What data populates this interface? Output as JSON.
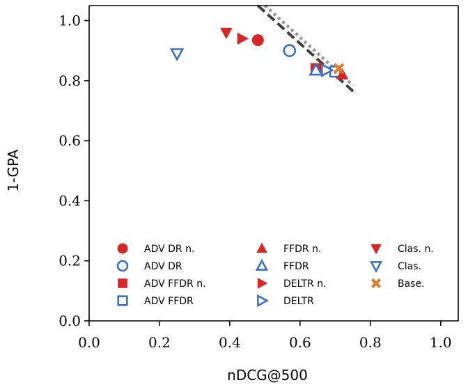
{
  "chart_data": {
    "type": "scatter",
    "xlabel": "nDCG@500",
    "ylabel": "1-GPA",
    "xlim": [
      0.0,
      1.05
    ],
    "ylim": [
      0.0,
      1.05
    ],
    "x_ticks": [
      "0.0",
      "0.2",
      "0.4",
      "0.6",
      "0.8",
      "1.0"
    ],
    "y_ticks": [
      "0.0",
      "0.2",
      "0.4",
      "0.6",
      "0.8",
      "1.0"
    ],
    "grid": false,
    "legend_position": "lower-right",
    "colors": {
      "red": "#d62728",
      "blue": "#3a6fc4",
      "orange": "#e07b2a",
      "dark_line": "#404040",
      "light_line": "#999999"
    },
    "series": [
      {
        "name": "ADV DR n.",
        "marker": "circle",
        "filled": true,
        "color": "#d62728",
        "points": [
          [
            0.48,
            0.935
          ]
        ]
      },
      {
        "name": "ADV DR",
        "marker": "circle",
        "filled": false,
        "color": "#3a6fc4",
        "points": [
          [
            0.57,
            0.9
          ]
        ]
      },
      {
        "name": "ADV FFDR n.",
        "marker": "square",
        "filled": true,
        "color": "#d62728",
        "points": [
          [
            0.645,
            0.84
          ]
        ]
      },
      {
        "name": "ADV FFDR",
        "marker": "square",
        "filled": false,
        "color": "#3a6fc4",
        "points": [
          [
            0.7,
            0.83
          ]
        ]
      },
      {
        "name": "FFDR n.",
        "marker": "triangle-up",
        "filled": true,
        "color": "#d62728",
        "points": [
          [
            0.72,
            0.82
          ]
        ]
      },
      {
        "name": "FFDR",
        "marker": "triangle-up",
        "filled": false,
        "color": "#3a6fc4",
        "points": [
          [
            0.645,
            0.835
          ]
        ]
      },
      {
        "name": "DELTR n.",
        "marker": "triangle-right",
        "filled": true,
        "color": "#d62728",
        "points": [
          [
            0.435,
            0.94
          ]
        ]
      },
      {
        "name": "DELTR",
        "marker": "triangle-right",
        "filled": false,
        "color": "#3a6fc4",
        "points": [
          [
            0.675,
            0.835
          ]
        ]
      },
      {
        "name": "Clas. n.",
        "marker": "triangle-down",
        "filled": true,
        "color": "#d62728",
        "points": [
          [
            0.39,
            0.96
          ]
        ]
      },
      {
        "name": "Clas.",
        "marker": "triangle-down",
        "filled": false,
        "color": "#3a6fc4",
        "points": [
          [
            0.25,
            0.89
          ]
        ]
      },
      {
        "name": "Base.",
        "marker": "x",
        "filled": true,
        "color": "#e07b2a",
        "points": [
          [
            0.71,
            0.84
          ]
        ]
      }
    ],
    "reference_lines": [
      {
        "style": "dashed",
        "color": "#404040",
        "points": [
          [
            0.48,
            1.05
          ],
          [
            0.76,
            0.755
          ]
        ]
      },
      {
        "style": "dotted",
        "color": "#999999",
        "points": [
          [
            0.5,
            1.05
          ],
          [
            0.75,
            0.785
          ]
        ]
      }
    ]
  }
}
